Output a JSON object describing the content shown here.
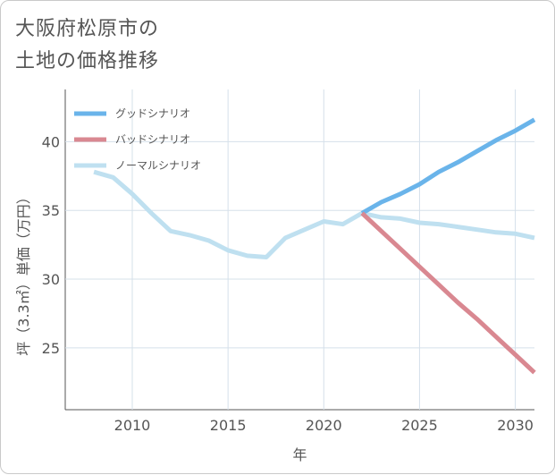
{
  "title_lines": [
    "大阪府松原市の",
    "土地の価格推移"
  ],
  "chart_data": {
    "type": "line",
    "xlabel": "年",
    "ylabel": "坪（3.3㎡）単価（万円）",
    "xlim": [
      2006.5,
      2031
    ],
    "ylim": [
      20.5,
      43.8
    ],
    "xticks": [
      2010,
      2015,
      2020,
      2025,
      2030
    ],
    "yticks": [
      25,
      30,
      35,
      40
    ],
    "grid": true,
    "legend": "top-left",
    "series": [
      {
        "name": "グッドシナリオ",
        "color": "#6ab4ea",
        "x": [
          2022,
          2023,
          2024,
          2025,
          2026,
          2027,
          2028,
          2029,
          2030,
          2031
        ],
        "y": [
          34.8,
          35.6,
          36.2,
          36.9,
          37.8,
          38.5,
          39.3,
          40.1,
          40.8,
          41.6
        ]
      },
      {
        "name": "バッドシナリオ",
        "color": "#d98891",
        "x": [
          2022,
          2023,
          2024,
          2025,
          2026,
          2027,
          2028,
          2029,
          2030,
          2031
        ],
        "y": [
          34.8,
          33.5,
          32.2,
          30.9,
          29.6,
          28.3,
          27.1,
          25.8,
          24.5,
          23.2
        ]
      },
      {
        "name": "ノーマルシナリオ",
        "color": "#bfe0f0",
        "x": [
          2008,
          2009,
          2010,
          2011,
          2012,
          2013,
          2014,
          2015,
          2016,
          2017,
          2018,
          2019,
          2020,
          2021,
          2022,
          2023,
          2024,
          2025,
          2026,
          2027,
          2028,
          2029,
          2030,
          2031
        ],
        "y": [
          37.8,
          37.4,
          36.2,
          34.8,
          33.5,
          33.2,
          32.8,
          32.1,
          31.7,
          31.6,
          33.0,
          33.6,
          34.2,
          34.0,
          34.8,
          34.5,
          34.4,
          34.1,
          34.0,
          33.8,
          33.6,
          33.4,
          33.3,
          33.0
        ]
      }
    ]
  }
}
